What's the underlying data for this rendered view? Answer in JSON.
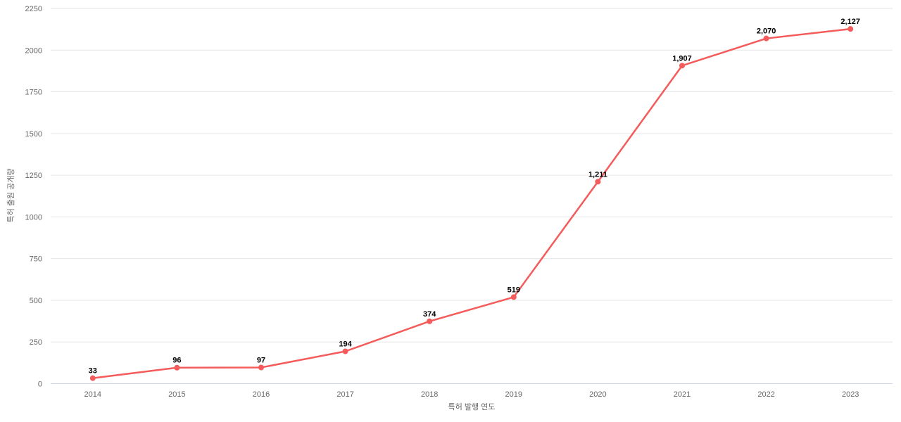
{
  "chart_data": {
    "type": "line",
    "title": "",
    "xlabel": "특허 발행 연도",
    "ylabel": "특허 출원 공개량",
    "categories": [
      "2014",
      "2015",
      "2016",
      "2017",
      "2018",
      "2019",
      "2020",
      "2021",
      "2022",
      "2023"
    ],
    "series": [
      {
        "name": "특허 출원 공개량",
        "values": [
          33,
          96,
          97,
          194,
          374,
          519,
          1211,
          1907,
          2070,
          2127
        ],
        "labels": [
          "33",
          "96",
          "97",
          "194",
          "374",
          "519",
          "1,211",
          "1,907",
          "2,070",
          "2,127"
        ],
        "color": "#f45b5b"
      }
    ],
    "ylim": [
      0,
      2250
    ],
    "y_ticks": [
      0,
      250,
      500,
      750,
      1000,
      1250,
      1500,
      1750,
      2000,
      2250
    ],
    "grid": "horizontal",
    "legend": "none",
    "colors": {
      "background": "#ffffff",
      "line": "#f45b5b",
      "marker": "#f45b5b",
      "gridline": "#e6e6e6",
      "axis_line": "#ccd6eb",
      "tick_label": "#666666",
      "axis_title": "#666666",
      "data_label": "#000000"
    }
  }
}
